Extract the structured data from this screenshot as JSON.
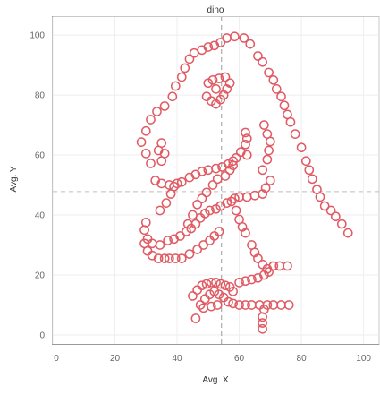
{
  "chart_data": {
    "type": "scatter",
    "title": "dino",
    "xlabel": "Avg. X",
    "ylabel": "Avg. Y",
    "xlim": [
      0,
      105
    ],
    "ylim": [
      -3,
      106
    ],
    "xticks": [
      0,
      20,
      40,
      60,
      80,
      100
    ],
    "yticks": [
      0,
      20,
      40,
      60,
      80,
      100
    ],
    "grid": true,
    "legend": "none",
    "marker": "open-circle",
    "color": "#e05a63",
    "ref_lines": {
      "x": 54.3,
      "y": 47.8
    },
    "points": [
      [
        31.5,
        57.2
      ],
      [
        30.0,
        60.5
      ],
      [
        28.5,
        64.3
      ],
      [
        30.0,
        68.0
      ],
      [
        31.5,
        71.8
      ],
      [
        33.5,
        74.5
      ],
      [
        36.0,
        76.3
      ],
      [
        38.5,
        79.5
      ],
      [
        39.5,
        83.0
      ],
      [
        41.5,
        86.0
      ],
      [
        42.5,
        89.0
      ],
      [
        44.0,
        92.0
      ],
      [
        45.5,
        94.0
      ],
      [
        48.0,
        95.0
      ],
      [
        50.0,
        96.0
      ],
      [
        52.0,
        96.5
      ],
      [
        54.0,
        97.5
      ],
      [
        56.0,
        99.0
      ],
      [
        58.5,
        99.5
      ],
      [
        61.5,
        99.0
      ],
      [
        63.5,
        97.0
      ],
      [
        66.0,
        93.0
      ],
      [
        67.5,
        91.0
      ],
      [
        69.5,
        87.5
      ],
      [
        71.0,
        85.0
      ],
      [
        72.0,
        82.0
      ],
      [
        73.5,
        79.5
      ],
      [
        74.5,
        76.5
      ],
      [
        75.5,
        73.5
      ],
      [
        76.5,
        71.0
      ],
      [
        78.0,
        67.0
      ],
      [
        80.0,
        62.5
      ],
      [
        81.5,
        58.0
      ],
      [
        82.5,
        55.0
      ],
      [
        83.5,
        52.0
      ],
      [
        85.0,
        48.5
      ],
      [
        86.0,
        46.0
      ],
      [
        87.5,
        43.0
      ],
      [
        89.5,
        41.5
      ],
      [
        91.0,
        39.5
      ],
      [
        93.0,
        37.0
      ],
      [
        95.0,
        34.0
      ],
      [
        49.5,
        79.5
      ],
      [
        51.0,
        78.0
      ],
      [
        52.5,
        77.0
      ],
      [
        54.0,
        78.5
      ],
      [
        55.0,
        80.0
      ],
      [
        56.0,
        82.0
      ],
      [
        57.0,
        84.0
      ],
      [
        55.5,
        86.0
      ],
      [
        53.5,
        85.5
      ],
      [
        51.5,
        85.0
      ],
      [
        50.0,
        84.0
      ],
      [
        52.5,
        82.0
      ],
      [
        35.0,
        64.0
      ],
      [
        34.0,
        61.5
      ],
      [
        36.0,
        60.5
      ],
      [
        35.0,
        58.0
      ],
      [
        62.0,
        67.5
      ],
      [
        62.5,
        65.5
      ],
      [
        62.0,
        63.5
      ],
      [
        62.5,
        60.0
      ],
      [
        68.0,
        70.0
      ],
      [
        69.0,
        67.0
      ],
      [
        70.0,
        64.5
      ],
      [
        69.5,
        61.5
      ],
      [
        69.0,
        58.5
      ],
      [
        67.5,
        55.0
      ],
      [
        33.0,
        51.5
      ],
      [
        35.0,
        50.5
      ],
      [
        37.5,
        50.0
      ],
      [
        40.0,
        50.5
      ],
      [
        41.5,
        51.0
      ],
      [
        44.0,
        52.5
      ],
      [
        46.0,
        53.5
      ],
      [
        48.0,
        54.5
      ],
      [
        50.0,
        55.0
      ],
      [
        52.5,
        55.5
      ],
      [
        54.5,
        56.0
      ],
      [
        56.5,
        57.0
      ],
      [
        58.0,
        58.0
      ],
      [
        59.0,
        59.0
      ],
      [
        60.5,
        61.0
      ],
      [
        58.0,
        56.5
      ],
      [
        38.0,
        47.0
      ],
      [
        39.0,
        49.5
      ],
      [
        36.5,
        44.0
      ],
      [
        34.5,
        41.5
      ],
      [
        43.5,
        37.0
      ],
      [
        45.0,
        40.0
      ],
      [
        46.5,
        43.5
      ],
      [
        48.0,
        45.5
      ],
      [
        49.5,
        47.5
      ],
      [
        51.5,
        50.0
      ],
      [
        53.0,
        52.0
      ],
      [
        55.5,
        53.0
      ],
      [
        57.0,
        55.0
      ],
      [
        58.5,
        45.5
      ],
      [
        60.0,
        46.0
      ],
      [
        62.5,
        46.0
      ],
      [
        65.0,
        46.5
      ],
      [
        67.5,
        47.0
      ],
      [
        68.5,
        49.0
      ],
      [
        70.0,
        51.5
      ],
      [
        30.0,
        37.5
      ],
      [
        29.5,
        35.0
      ],
      [
        30.5,
        32.0
      ],
      [
        32.0,
        30.5
      ],
      [
        34.5,
        30.0
      ],
      [
        37.0,
        31.5
      ],
      [
        39.0,
        32.0
      ],
      [
        41.0,
        33.0
      ],
      [
        43.0,
        34.5
      ],
      [
        44.5,
        35.5
      ],
      [
        46.0,
        37.0
      ],
      [
        47.5,
        39.0
      ],
      [
        49.0,
        40.5
      ],
      [
        50.5,
        41.5
      ],
      [
        52.5,
        42.0
      ],
      [
        54.0,
        43.0
      ],
      [
        56.0,
        44.0
      ],
      [
        57.5,
        44.5
      ],
      [
        59.0,
        41.5
      ],
      [
        60.0,
        38.5
      ],
      [
        61.0,
        36.0
      ],
      [
        62.0,
        34.0
      ],
      [
        29.5,
        30.5
      ],
      [
        30.5,
        28.0
      ],
      [
        32.0,
        26.5
      ],
      [
        34.0,
        25.5
      ],
      [
        36.0,
        25.5
      ],
      [
        37.5,
        25.5
      ],
      [
        39.5,
        25.5
      ],
      [
        41.5,
        25.5
      ],
      [
        44.0,
        27.0
      ],
      [
        46.5,
        28.5
      ],
      [
        48.5,
        30.0
      ],
      [
        50.5,
        31.5
      ],
      [
        52.0,
        33.0
      ],
      [
        53.5,
        34.5
      ],
      [
        64.0,
        30.0
      ],
      [
        65.0,
        27.5
      ],
      [
        66.0,
        25.5
      ],
      [
        67.5,
        23.5
      ],
      [
        69.0,
        22.0
      ],
      [
        71.0,
        23.0
      ],
      [
        73.0,
        23.0
      ],
      [
        75.5,
        23.0
      ],
      [
        60.0,
        17.5
      ],
      [
        62.0,
        18.0
      ],
      [
        64.0,
        18.5
      ],
      [
        66.0,
        19.0
      ],
      [
        68.0,
        20.0
      ],
      [
        69.5,
        21.0
      ],
      [
        45.0,
        13.0
      ],
      [
        46.5,
        15.0
      ],
      [
        48.0,
        16.5
      ],
      [
        49.5,
        17.0
      ],
      [
        51.0,
        17.5
      ],
      [
        52.5,
        17.5
      ],
      [
        54.0,
        17.0
      ],
      [
        55.5,
        16.5
      ],
      [
        57.0,
        16.0
      ],
      [
        58.0,
        14.5
      ],
      [
        47.5,
        10.0
      ],
      [
        49.0,
        12.0
      ],
      [
        50.5,
        13.5
      ],
      [
        52.0,
        14.5
      ],
      [
        53.5,
        13.5
      ],
      [
        55.0,
        12.5
      ],
      [
        56.5,
        11.0
      ],
      [
        58.0,
        10.5
      ],
      [
        60.0,
        10.0
      ],
      [
        62.0,
        10.0
      ],
      [
        46.0,
        5.5
      ],
      [
        48.5,
        9.0
      ],
      [
        51.0,
        9.5
      ],
      [
        53.0,
        10.0
      ],
      [
        64.0,
        10.0
      ],
      [
        66.5,
        10.0
      ],
      [
        68.0,
        8.5
      ],
      [
        69.0,
        10.0
      ],
      [
        71.0,
        10.0
      ],
      [
        73.5,
        10.0
      ],
      [
        76.0,
        10.0
      ],
      [
        67.5,
        6.0
      ],
      [
        67.5,
        4.0
      ],
      [
        67.5,
        2.0
      ]
    ]
  }
}
